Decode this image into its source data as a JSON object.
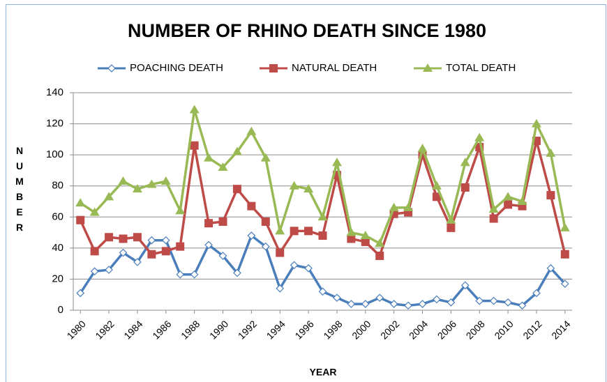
{
  "chart_data": {
    "type": "line",
    "title": "NUMBER OF RHINO DEATH SINCE 1980",
    "xlabel": "YEAR",
    "ylabel": "NUMBER",
    "x": [
      1980,
      1981,
      1982,
      1983,
      1984,
      1985,
      1986,
      1987,
      1988,
      1989,
      1990,
      1991,
      1992,
      1993,
      1994,
      1995,
      1996,
      1997,
      1998,
      1999,
      2000,
      2001,
      2002,
      2003,
      2004,
      2005,
      2006,
      2007,
      2008,
      2009,
      2010,
      2011,
      2012,
      2013,
      2014
    ],
    "xlim": [
      1979.5,
      2014.5
    ],
    "xticks": [
      1980,
      1982,
      1984,
      1986,
      1988,
      1990,
      1992,
      1994,
      1996,
      1998,
      2000,
      2002,
      2004,
      2006,
      2008,
      2010,
      2012,
      2014
    ],
    "ylim": [
      0,
      140
    ],
    "yticks": [
      0,
      20,
      40,
      60,
      80,
      100,
      120,
      140
    ],
    "grid": true,
    "legend": "top",
    "series": [
      {
        "name": "POACHING DEATH",
        "color": "#4a7ebb",
        "marker": "diamond",
        "values": [
          11,
          25,
          26,
          37,
          31,
          45,
          45,
          23,
          23,
          42,
          35,
          24,
          48,
          41,
          14,
          29,
          27,
          12,
          8,
          4,
          4,
          8,
          4,
          3,
          4,
          7,
          5,
          16,
          6,
          6,
          5,
          3,
          11,
          27,
          17
        ]
      },
      {
        "name": "NATURAL DEATH",
        "color": "#be4b48",
        "marker": "square",
        "values": [
          58,
          38,
          47,
          46,
          47,
          36,
          38,
          41,
          106,
          56,
          57,
          78,
          67,
          57,
          37,
          51,
          51,
          48,
          87,
          46,
          44,
          35,
          62,
          63,
          100,
          73,
          53,
          79,
          105,
          59,
          68,
          67,
          109,
          74,
          36
        ]
      },
      {
        "name": "TOTAL DEATH",
        "color": "#98b954",
        "marker": "triangle",
        "values": [
          69,
          63,
          73,
          83,
          78,
          81,
          83,
          64,
          129,
          98,
          92,
          102,
          115,
          98,
          51,
          80,
          78,
          60,
          95,
          50,
          48,
          43,
          66,
          66,
          104,
          80,
          58,
          95,
          111,
          65,
          73,
          70,
          120,
          101,
          53
        ]
      }
    ]
  }
}
